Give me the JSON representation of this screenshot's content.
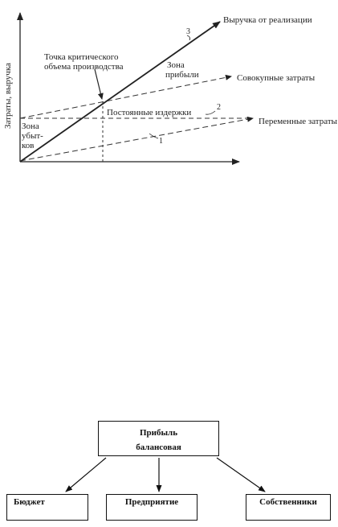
{
  "diagram": {
    "y_axis_label": "Затраты, выручка",
    "revenue_label": "Выручка от реализации",
    "total_costs_label": "Совокупные затраты",
    "variable_costs_label": "Переменные затраты",
    "fixed_costs_label": "Постоянные издержки",
    "critical_point_line1": "Точка критического",
    "critical_point_line2": "объема производства",
    "profit_zone_line1": "Зона",
    "profit_zone_line2": "прибыли",
    "loss_zone_line1": "Зона",
    "loss_zone_line2": "убыт-",
    "loss_zone_line3": "ков",
    "line_num_1": "1",
    "line_num_2": "2",
    "line_num_3": "3"
  },
  "tree": {
    "root_line1": "Прибыль",
    "root_line2": "балансовая",
    "child_budget": "Бюджет",
    "child_enterprise": "Предприятие",
    "child_owners": "Собственники"
  }
}
